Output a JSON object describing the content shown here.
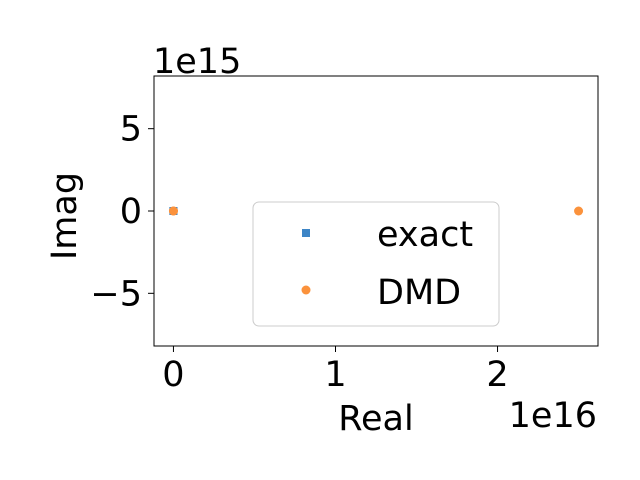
{
  "chart_data": {
    "type": "scatter",
    "xlabel": "Real",
    "ylabel": "Imag",
    "x_offset_text": "1e16",
    "y_offset_text": "1e15",
    "xlim": [
      -1200000000000000.0,
      2.62e+16
    ],
    "ylim": [
      -8200000000000000.0,
      8200000000000000.0
    ],
    "x_ticks": [
      0,
      1e+16,
      2e+16
    ],
    "x_tick_labels": [
      "0",
      "1",
      "2"
    ],
    "y_ticks": [
      -5000000000000000.0,
      0,
      5000000000000000.0
    ],
    "y_tick_labels": [
      "−5",
      "0",
      "5"
    ],
    "grid": false,
    "legend_position": "center",
    "series": [
      {
        "name": "exact",
        "marker": "square",
        "color": "#3d85c6",
        "points": [
          [
            0,
            0
          ],
          [
            0,
            0
          ],
          [
            0,
            0
          ]
        ]
      },
      {
        "name": "DMD",
        "marker": "circle",
        "color": "#fb923c",
        "points": [
          [
            0,
            0
          ],
          [
            0,
            0
          ],
          [
            2.5e+16,
            0
          ]
        ]
      }
    ]
  }
}
